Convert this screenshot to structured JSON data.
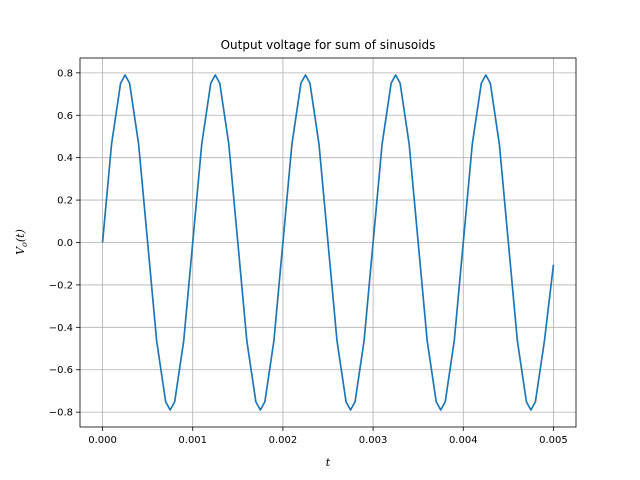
{
  "chart_data": {
    "type": "line",
    "title": "Output voltage for sum of sinusoids",
    "xlabel": "t",
    "ylabel": "V_o(t)",
    "ylabel_main": "V",
    "ylabel_sub": "o",
    "ylabel_rest": "(t)",
    "xlim": [
      -0.00025,
      0.00525
    ],
    "ylim": [
      -0.87,
      0.87
    ],
    "xticks": [
      0.0,
      0.001,
      0.002,
      0.003,
      0.004,
      0.005
    ],
    "xtick_labels": [
      "0.000",
      "0.001",
      "0.002",
      "0.003",
      "0.004",
      "0.005"
    ],
    "yticks": [
      -0.8,
      -0.6,
      -0.4,
      -0.2,
      0.0,
      0.2,
      0.4,
      0.6,
      0.8
    ],
    "ytick_labels": [
      "−0.8",
      "−0.6",
      "−0.4",
      "−0.2",
      "0.0",
      "0.2",
      "0.4",
      "0.6",
      "0.8"
    ],
    "grid": true,
    "line_color": "#1f77b4",
    "series": [
      {
        "x": [
          0,
          0.0001,
          0.0002,
          0.00025,
          0.0003,
          0.0004,
          0.0005,
          0.0006,
          0.0007,
          0.00075,
          0.0008,
          0.0009,
          0.001,
          0.0011,
          0.0012,
          0.00125,
          0.0013,
          0.0014,
          0.0015,
          0.0016,
          0.0017,
          0.00175,
          0.0018,
          0.0019,
          0.002,
          0.0021,
          0.0022,
          0.00225,
          0.0023,
          0.0024,
          0.0025,
          0.0026,
          0.0027,
          0.00275,
          0.0028,
          0.0029,
          0.003,
          0.0031,
          0.0032,
          0.00325,
          0.0033,
          0.0034,
          0.0035,
          0.0036,
          0.0037,
          0.00375,
          0.0038,
          0.0039,
          0.004,
          0.0041,
          0.0042,
          0.00425,
          0.0043,
          0.0044,
          0.0045,
          0.0046,
          0.0047,
          0.00475,
          0.0048,
          0.0049,
          0.005
        ],
        "values": [
          0,
          0.464,
          0.751,
          0.79,
          0.751,
          0.464,
          0,
          -0.464,
          -0.751,
          -0.79,
          -0.751,
          -0.464,
          0,
          0.464,
          0.751,
          0.79,
          0.751,
          0.464,
          0,
          -0.464,
          -0.751,
          -0.79,
          -0.751,
          -0.464,
          0,
          0.464,
          0.751,
          0.79,
          0.751,
          0.464,
          0,
          -0.464,
          -0.751,
          -0.79,
          -0.751,
          -0.464,
          0,
          0.464,
          0.751,
          0.79,
          0.751,
          0.464,
          0,
          -0.464,
          -0.751,
          -0.79,
          -0.751,
          -0.464,
          0,
          0.464,
          0.751,
          0.79,
          0.751,
          0.464,
          0,
          -0.464,
          -0.751,
          -0.79,
          -0.751,
          -0.464,
          -0.105
        ]
      }
    ]
  }
}
